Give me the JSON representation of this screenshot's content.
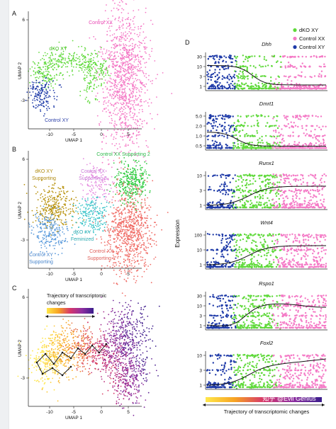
{
  "chart_data": [
    {
      "panel": "A",
      "type": "scatter",
      "xlabel": "UMAP 1",
      "ylabel": "UMAP 2",
      "xticks": [
        "-10",
        "-5",
        "0",
        "5"
      ],
      "yticks": [
        "6",
        "-3"
      ],
      "xlim": [
        -14,
        9
      ],
      "ylim": [
        -6,
        7
      ],
      "clusters": [
        {
          "name": "Control XX",
          "color": "#f47ac6",
          "label_color": "#e84bb5",
          "center": [
            4.5,
            1.2
          ],
          "spread": [
            2.2,
            4.4
          ],
          "count": 900
        },
        {
          "name": "dKO XY",
          "color": "#5fd93a",
          "label_color": "#4cc22a",
          "center": [
            -6.8,
            1.8
          ],
          "spread": [
            2.6,
            1.2
          ],
          "count": 260
        },
        {
          "name": "Control XY",
          "color": "#1e3aa8",
          "label_color": "#2b3fa8",
          "center": [
            -10.8,
            -1.6
          ],
          "spread": [
            1.3,
            1.4
          ],
          "count": 170
        }
      ]
    },
    {
      "panel": "B",
      "type": "scatter",
      "xlabel": "UMAP 1",
      "ylabel": "UMAP 2",
      "xticks": [
        "-10",
        "-5",
        "0",
        "5"
      ],
      "yticks": [
        "6",
        "-3"
      ],
      "clusters": [
        {
          "name": "Control XX Supporting 2",
          "color": "#2ecc40",
          "label_color": "#2eb84a"
        },
        {
          "name": "Control XX Supporting 3",
          "color": "#e58ce0",
          "label_color": "#c877d6"
        },
        {
          "name": "dKO XY Supporting",
          "color": "#b8930f",
          "label_color": "#b08a10"
        },
        {
          "name": "dKO XY Feminized",
          "color": "#39c3c8",
          "label_color": "#2aa9b0"
        },
        {
          "name": "Control XX Supporting 1",
          "color": "#f06e68",
          "label_color": "#e0605a"
        },
        {
          "name": "Control XY Supporting",
          "color": "#5b9bdc",
          "label_color": "#4a86cc"
        }
      ]
    },
    {
      "panel": "C",
      "type": "scatter",
      "xlabel": "UMAP 1",
      "ylabel": "UMAP 2",
      "xticks": [
        "-10",
        "-5",
        "0",
        "5"
      ],
      "yticks": [
        "6",
        "-3"
      ],
      "legend_title": "Trajectory of transcriptomic changes",
      "color_scale": [
        "#ffe84a",
        "#f7a323",
        "#d6366b",
        "#8e2fa0",
        "#3a1d8c"
      ]
    },
    {
      "panel": "D",
      "type": "scatter",
      "ylabel": "Expression",
      "xlabel": "Trajectory of transcriptomic changes",
      "legend": [
        {
          "name": "dKO XY",
          "color": "#5fd93a"
        },
        {
          "name": "Control XX",
          "color": "#f47ac6"
        },
        {
          "name": "Control XY",
          "color": "#1e3aa8"
        }
      ],
      "genes": [
        {
          "name": "Dhh",
          "yticks": [
            "30",
            "10",
            "3",
            "1"
          ]
        },
        {
          "name": "Dmrt1",
          "yticks": [
            "5.0",
            "2.0",
            "1.0",
            "0.5"
          ]
        },
        {
          "name": "Runx1",
          "yticks": [
            "10",
            "3",
            "1"
          ]
        },
        {
          "name": "Wnt4",
          "yticks": [
            "100",
            "10",
            "1"
          ]
        },
        {
          "name": "Rspo1",
          "yticks": [
            "30",
            "10",
            "3",
            "1"
          ]
        },
        {
          "name": "Foxl2",
          "yticks": [
            "10",
            "3",
            "1"
          ]
        }
      ]
    }
  ],
  "panels": {
    "a": "A",
    "b": "B",
    "c": "C",
    "d": "D"
  },
  "watermark": "知乎 @Evil Genius"
}
